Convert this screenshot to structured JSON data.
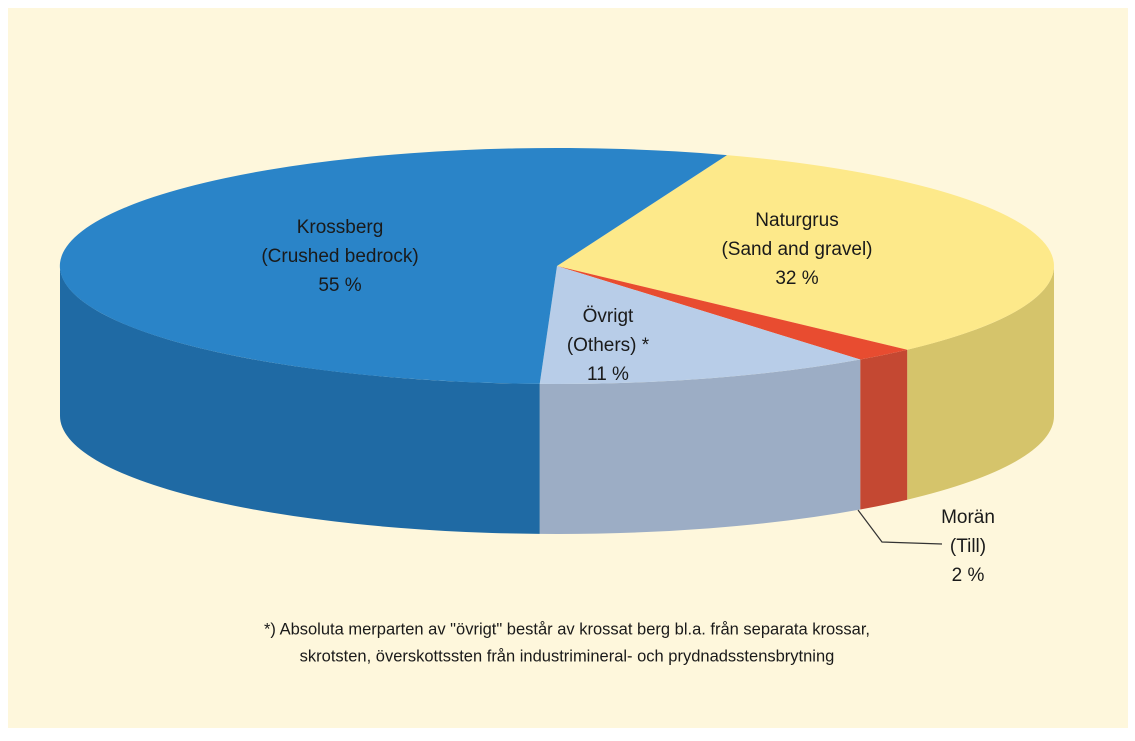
{
  "chart_data": {
    "type": "pie",
    "categories": [
      [
        "Naturgrus",
        "(Sand and gravel)"
      ],
      [
        "Morän",
        "(Till)"
      ],
      [
        "Övrigt",
        "(Others) *"
      ],
      [
        "Krossberg",
        "(Crushed bedrock)"
      ]
    ],
    "values": [
      32,
      2,
      11,
      55
    ],
    "value_labels": [
      "32 %",
      "2 %",
      "11 %",
      "55 %"
    ],
    "colors": [
      "#fde98a",
      "#e84c30",
      "#b8cde8",
      "#2a84c8"
    ],
    "side_colors": [
      "#d5c46b",
      "#c44832",
      "#9cadc5",
      "#1f6aa4"
    ],
    "footnote": [
      "*) Absoluta merparten av \"övrigt\" består av krossat berg bl.a. från separata krossar,",
      "skrotsten, överskottssten från industrimineral- och prydnadsstensbrytning"
    ]
  }
}
